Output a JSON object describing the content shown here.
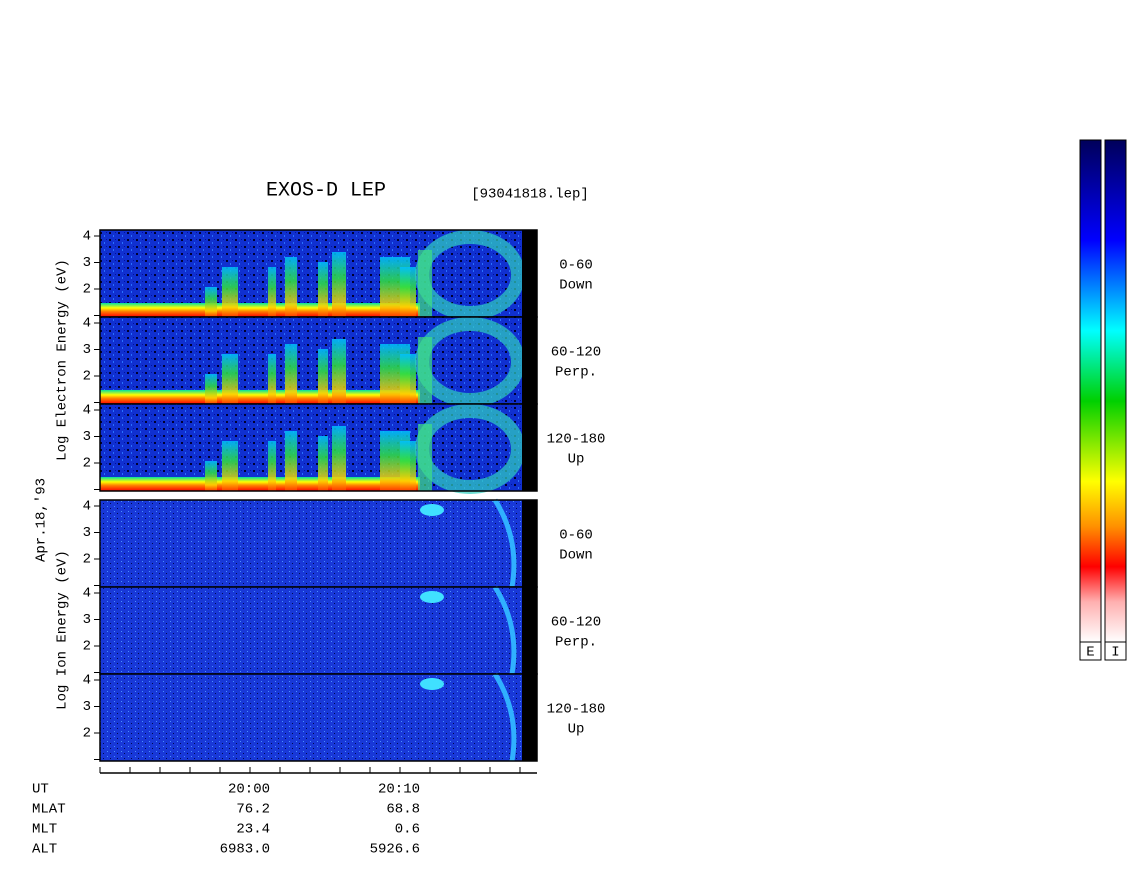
{
  "header": {
    "title": "EXOS-D LEP",
    "file": "[93041818.lep]"
  },
  "date": "Apr.18,'93",
  "electron": {
    "axis_label": "Log Electron Energy (eV)",
    "panels": [
      {
        "angle": "0-60",
        "direction": "Down"
      },
      {
        "angle": "60-120",
        "direction": "Perp."
      },
      {
        "angle": "120-180",
        "direction": "Up"
      }
    ]
  },
  "ion": {
    "axis_label": "Log Ion Energy (eV)",
    "panels": [
      {
        "angle": "0-60",
        "direction": "Down"
      },
      {
        "angle": "60-120",
        "direction": "Perp."
      },
      {
        "angle": "120-180",
        "direction": "Up"
      }
    ]
  },
  "energy_ticks": [
    2,
    3,
    4
  ],
  "ephemeris": {
    "rows": [
      [
        "UT",
        "20:00",
        "20:10"
      ],
      [
        "MLAT",
        "76.2",
        "68.8"
      ],
      [
        "MLT",
        "23.4",
        "0.6"
      ],
      [
        "ALT",
        "6983.0",
        "5926.6"
      ]
    ]
  },
  "colorbars": [
    "E",
    "I"
  ]
}
